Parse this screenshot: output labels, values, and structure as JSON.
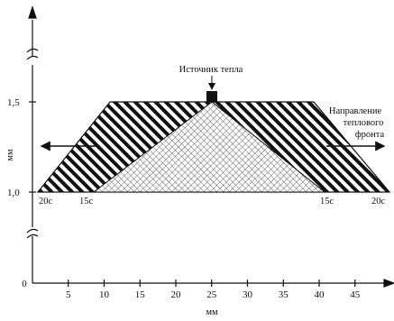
{
  "title": "",
  "x_axis": {
    "label": "мм",
    "ticks": [
      "0",
      "5",
      "10",
      "15",
      "20",
      "25",
      "30",
      "35",
      "40",
      "45"
    ]
  },
  "y_axis": {
    "label": "мм",
    "ticks": [
      "1,0",
      "1,5"
    ]
  },
  "annotations": {
    "heat_source": "Источник тепла",
    "front_direction": [
      "Направление",
      "теплового",
      "фронта"
    ],
    "time_labels": {
      "left_outer": "20c",
      "left_inner": "15c",
      "right_inner": "15c",
      "right_outer": "20c"
    }
  },
  "regions": {
    "outer_front_20s": {
      "pattern": "diagonal-hatch",
      "y_range_mm": [
        1.0,
        1.5
      ],
      "base_x_mm": [
        1.5,
        49
      ],
      "top_x_mm": [
        11,
        38.5
      ]
    },
    "inner_front_15s": {
      "pattern": "cross-hatch",
      "y_range_mm": [
        1.0,
        1.5
      ],
      "base_x_mm": [
        7.5,
        42
      ],
      "apex_x_mm": 25
    }
  },
  "colors": {
    "ink": "#111111",
    "background": "#ffffff"
  }
}
